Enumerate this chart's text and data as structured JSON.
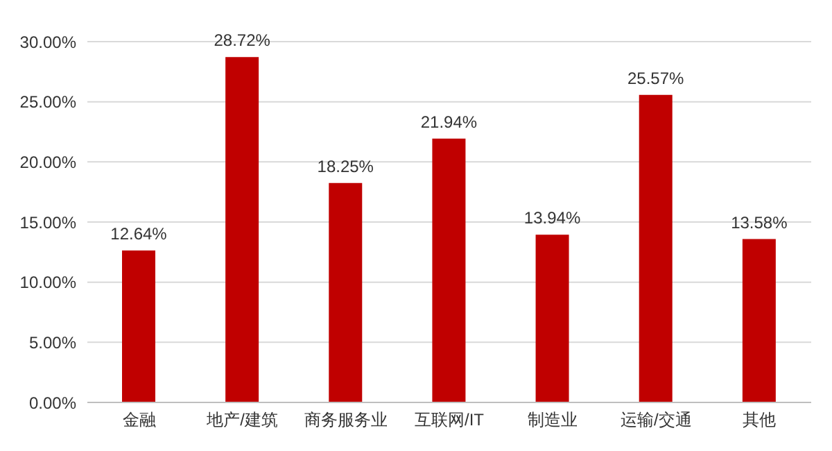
{
  "chart_data": {
    "type": "bar",
    "categories": [
      "金融",
      "地产/建筑",
      "商务服务业",
      "互联网/IT",
      "制造业",
      "运输/交通",
      "其他"
    ],
    "values": [
      12.64,
      28.72,
      18.25,
      21.94,
      13.94,
      25.57,
      13.58
    ],
    "value_labels": [
      "12.64%",
      "28.72%",
      "18.25%",
      "21.94%",
      "13.94%",
      "25.57%",
      "13.58%"
    ],
    "color": "#c00000",
    "ylim": [
      0,
      30
    ],
    "yticks": [
      {
        "value": 0,
        "label": "0.00%"
      },
      {
        "value": 5,
        "label": "5.00%"
      },
      {
        "value": 10,
        "label": "10.00%"
      },
      {
        "value": 15,
        "label": "15.00%"
      },
      {
        "value": 20,
        "label": "20.00%"
      },
      {
        "value": 25,
        "label": "25.00%"
      },
      {
        "value": 30,
        "label": "30.00%"
      }
    ],
    "grid": "y",
    "legend": false
  }
}
